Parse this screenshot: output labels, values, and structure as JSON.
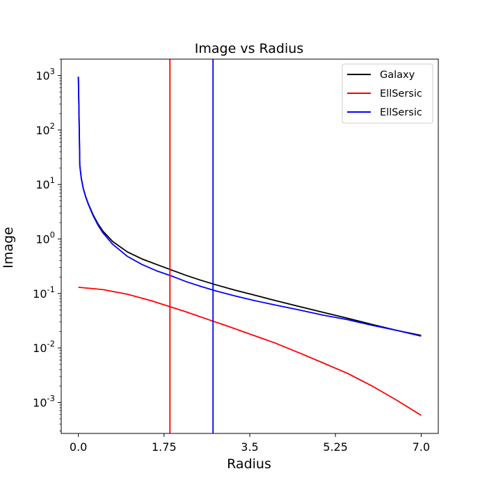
{
  "chart_data": {
    "type": "line",
    "title": "Image vs Radius",
    "xlabel": "Radius",
    "ylabel": "Image",
    "xlim": [
      -0.35,
      7.35
    ],
    "ylim": [
      0.00027,
      2000
    ],
    "yscale": "log",
    "grid": false,
    "legend_position": "upper right",
    "x_ticks": [
      0.0,
      1.75,
      3.5,
      5.25,
      7.0
    ],
    "x_tick_labels": [
      "0.0",
      "1.75",
      "3.5",
      "5.25",
      "7.0"
    ],
    "y_ticks": [
      0.001,
      0.01,
      0.1,
      1,
      10,
      100,
      1000
    ],
    "y_tick_exponents": [
      "-3",
      "-2",
      "-1",
      "0",
      "1",
      "2",
      "3"
    ],
    "y_tick_base": "10",
    "series": [
      {
        "name": "Galaxy",
        "color": "#000000",
        "x": [
          0.0,
          0.01,
          0.03,
          0.06,
          0.1,
          0.15,
          0.2,
          0.3,
          0.4,
          0.5,
          0.7,
          1.0,
          1.3,
          1.6,
          1.9,
          2.2,
          2.5,
          2.8,
          3.2,
          3.6,
          4.0,
          4.5,
          5.0,
          5.5,
          6.0,
          6.5,
          7.0
        ],
        "y": [
          950,
          300,
          22,
          13,
          8.5,
          6.0,
          4.5,
          2.8,
          1.9,
          1.4,
          0.9,
          0.58,
          0.43,
          0.34,
          0.27,
          0.215,
          0.175,
          0.145,
          0.115,
          0.093,
          0.075,
          0.058,
          0.045,
          0.035,
          0.027,
          0.021,
          0.017
        ]
      },
      {
        "name": "EllSersic",
        "color": "#ff0000",
        "x": [
          0.0,
          0.5,
          1.0,
          1.5,
          1.85,
          2.2,
          2.75,
          3.0,
          3.5,
          4.0,
          4.5,
          5.0,
          5.5,
          6.0,
          6.5,
          7.0
        ],
        "y": [
          0.13,
          0.118,
          0.097,
          0.073,
          0.058,
          0.046,
          0.031,
          0.026,
          0.018,
          0.0125,
          0.0082,
          0.0053,
          0.0034,
          0.002,
          0.0011,
          0.00058
        ]
      },
      {
        "name": "EllSersic",
        "color": "#0000ff",
        "x": [
          0.0,
          0.01,
          0.03,
          0.06,
          0.1,
          0.15,
          0.2,
          0.3,
          0.4,
          0.5,
          0.7,
          1.0,
          1.3,
          1.6,
          1.9,
          2.2,
          2.5,
          2.8,
          3.2,
          3.6,
          4.0,
          4.5,
          5.0,
          5.5,
          6.0,
          6.5,
          7.0
        ],
        "y": [
          950,
          300,
          22,
          13,
          8.4,
          5.9,
          4.4,
          2.7,
          1.8,
          1.3,
          0.8,
          0.48,
          0.34,
          0.26,
          0.21,
          0.165,
          0.135,
          0.112,
          0.09,
          0.074,
          0.062,
          0.05,
          0.04,
          0.033,
          0.026,
          0.021,
          0.0165
        ]
      }
    ],
    "vlines": [
      {
        "x": 1.87,
        "color": "#ff0000"
      },
      {
        "x": 2.75,
        "color": "#0000ff"
      }
    ]
  }
}
